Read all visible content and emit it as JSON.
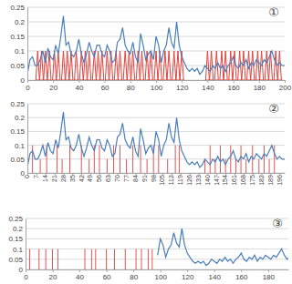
{
  "chart_data": [
    {
      "type": "line",
      "title": "①",
      "xlim": [
        0,
        200
      ],
      "ylim": [
        0,
        0.25
      ],
      "xticks": [
        0,
        20,
        40,
        60,
        80,
        100,
        120,
        140,
        160,
        180,
        200
      ],
      "yticks": [
        0,
        0.05,
        0.1,
        0.15,
        0.2,
        0.25
      ],
      "grid": true,
      "series": [
        {
          "type": "line",
          "color": "#4a7ebb",
          "x": [
            0,
            2,
            4,
            6,
            8,
            10,
            12,
            14,
            16,
            18,
            20,
            22,
            24,
            26,
            28,
            30,
            32,
            34,
            36,
            38,
            40,
            42,
            44,
            46,
            48,
            50,
            52,
            54,
            56,
            58,
            60,
            62,
            64,
            66,
            68,
            70,
            72,
            74,
            76,
            78,
            80,
            82,
            84,
            86,
            88,
            90,
            92,
            94,
            96,
            98,
            100,
            102,
            104,
            106,
            108,
            110,
            112,
            114,
            116,
            118,
            120,
            122,
            124,
            126,
            128,
            130,
            132,
            134,
            136,
            138,
            140,
            142,
            144,
            146,
            148,
            150,
            152,
            154,
            156,
            158,
            160,
            162,
            164,
            166,
            168,
            170,
            172,
            174,
            176,
            178,
            180,
            182,
            184,
            186,
            188,
            190,
            192,
            194,
            196,
            198,
            200
          ],
          "values": [
            0.02,
            0.07,
            0.08,
            0.05,
            0.05,
            0.07,
            0.1,
            0.06,
            0.11,
            0.08,
            0.07,
            0.12,
            0.09,
            0.15,
            0.22,
            0.12,
            0.13,
            0.09,
            0.08,
            0.1,
            0.14,
            0.09,
            0.06,
            0.09,
            0.13,
            0.1,
            0.08,
            0.12,
            0.12,
            0.09,
            0.08,
            0.12,
            0.1,
            0.06,
            0.07,
            0.13,
            0.14,
            0.18,
            0.12,
            0.1,
            0.09,
            0.13,
            0.08,
            0.06,
            0.16,
            0.12,
            0.07,
            0.09,
            0.1,
            0.07,
            0.15,
            0.12,
            0.06,
            0.1,
            0.12,
            0.18,
            0.13,
            0.11,
            0.2,
            0.12,
            0.08,
            0.06,
            0.04,
            0.03,
            0.04,
            0.03,
            0.04,
            0.02,
            0.03,
            0.05,
            0.04,
            0.03,
            0.05,
            0.04,
            0.06,
            0.04,
            0.05,
            0.03,
            0.05,
            0.06,
            0.08,
            0.05,
            0.04,
            0.06,
            0.05,
            0.07,
            0.04,
            0.06,
            0.05,
            0.07,
            0.06,
            0.05,
            0.07,
            0.06,
            0.08,
            0.1,
            0.07,
            0.05,
            0.06,
            0.05,
            0.05
          ]
        },
        {
          "type": "spike",
          "color": "#e0413c",
          "x": [
            8,
            11,
            14,
            17,
            21,
            24,
            28,
            31,
            34,
            38,
            42,
            45,
            48,
            52,
            55,
            58,
            62,
            65,
            69,
            72,
            76,
            79,
            82,
            86,
            89,
            93,
            96,
            100,
            103,
            107,
            110,
            114,
            117,
            120,
            140,
            143,
            147,
            151,
            154,
            158,
            161,
            165,
            168,
            172,
            175,
            179,
            182,
            186,
            189,
            193,
            196
          ],
          "values": [
            0.1,
            0.1,
            0.1,
            0.1,
            0.1,
            0.1,
            0.1,
            0.1,
            0.1,
            0.1,
            0.1,
            0.1,
            0.1,
            0.1,
            0.1,
            0.1,
            0.1,
            0.1,
            0.1,
            0.1,
            0.1,
            0.1,
            0.1,
            0.1,
            0.1,
            0.1,
            0.1,
            0.1,
            0.1,
            0.1,
            0.1,
            0.1,
            0.1,
            0.1,
            0.1,
            0.1,
            0.1,
            0.1,
            0.1,
            0.1,
            0.1,
            0.1,
            0.1,
            0.1,
            0.1,
            0.1,
            0.1,
            0.1,
            0.1,
            0.1,
            0.1
          ]
        }
      ]
    },
    {
      "type": "line",
      "title": "②",
      "xlim": [
        0,
        200
      ],
      "ylim": [
        0,
        0.25
      ],
      "xticks": [
        0,
        7,
        14,
        21,
        28,
        35,
        42,
        49,
        56,
        63,
        70,
        77,
        84,
        91,
        98,
        105,
        112,
        119,
        126,
        133,
        140,
        147,
        154,
        161,
        168,
        175,
        182,
        189,
        196
      ],
      "yticks": [
        0,
        0.05,
        0.1,
        0.15,
        0.2,
        0.25
      ],
      "grid": true,
      "series": [
        {
          "type": "line",
          "color": "#4a7ebb",
          "x": [
            0,
            2,
            4,
            6,
            8,
            10,
            12,
            14,
            16,
            18,
            20,
            22,
            24,
            26,
            28,
            30,
            32,
            34,
            36,
            38,
            40,
            42,
            44,
            46,
            48,
            50,
            52,
            54,
            56,
            58,
            60,
            62,
            64,
            66,
            68,
            70,
            72,
            74,
            76,
            78,
            80,
            82,
            84,
            86,
            88,
            90,
            92,
            94,
            96,
            98,
            100,
            102,
            104,
            106,
            108,
            110,
            112,
            114,
            116,
            118,
            120,
            122,
            124,
            126,
            128,
            130,
            132,
            134,
            136,
            138,
            140,
            142,
            144,
            146,
            148,
            150,
            152,
            154,
            156,
            158,
            160,
            162,
            164,
            166,
            168,
            170,
            172,
            174,
            176,
            178,
            180,
            182,
            184,
            186,
            188,
            190,
            192,
            194,
            196,
            198,
            200
          ],
          "values": [
            0.02,
            0.07,
            0.08,
            0.05,
            0.05,
            0.07,
            0.1,
            0.06,
            0.11,
            0.08,
            0.07,
            0.12,
            0.09,
            0.15,
            0.22,
            0.12,
            0.13,
            0.09,
            0.08,
            0.1,
            0.14,
            0.09,
            0.06,
            0.09,
            0.13,
            0.1,
            0.08,
            0.12,
            0.12,
            0.09,
            0.08,
            0.12,
            0.1,
            0.06,
            0.07,
            0.13,
            0.14,
            0.18,
            0.12,
            0.1,
            0.09,
            0.13,
            0.08,
            0.06,
            0.16,
            0.12,
            0.07,
            0.09,
            0.1,
            0.07,
            0.15,
            0.12,
            0.06,
            0.1,
            0.12,
            0.18,
            0.13,
            0.11,
            0.2,
            0.12,
            0.08,
            0.06,
            0.04,
            0.03,
            0.04,
            0.03,
            0.04,
            0.02,
            0.03,
            0.05,
            0.04,
            0.03,
            0.05,
            0.04,
            0.06,
            0.04,
            0.05,
            0.03,
            0.05,
            0.06,
            0.08,
            0.05,
            0.04,
            0.06,
            0.05,
            0.07,
            0.04,
            0.06,
            0.05,
            0.07,
            0.06,
            0.05,
            0.07,
            0.06,
            0.08,
            0.1,
            0.07,
            0.05,
            0.06,
            0.05,
            0.05
          ]
        },
        {
          "type": "stem",
          "color": "#e05555",
          "x": [
            4,
            10,
            15,
            23,
            27,
            33,
            42,
            48,
            52,
            56,
            62,
            67,
            72,
            77,
            82,
            88,
            93,
            98,
            102,
            109,
            115,
            118,
            138,
            142,
            146,
            150,
            154,
            158,
            162,
            166,
            170,
            175,
            180,
            184,
            188,
            192
          ],
          "values": [
            0.1,
            0.05,
            0.1,
            0.1,
            0.05,
            0.1,
            0.1,
            0.05,
            0.1,
            0.1,
            0.05,
            0.1,
            0.1,
            0.05,
            0.1,
            0.1,
            0.05,
            0.1,
            0.1,
            0.05,
            0.1,
            0.1,
            0.05,
            0.1,
            0.05,
            0.1,
            0.05,
            0.1,
            0.05,
            0.1,
            0.05,
            0.1,
            0.05,
            0.1,
            0.05,
            0.1
          ]
        }
      ]
    },
    {
      "type": "line",
      "title": "③",
      "xlim": [
        0,
        195
      ],
      "ylim": [
        0,
        0.25
      ],
      "xticks": [
        0,
        20,
        40,
        60,
        80,
        100,
        120,
        140,
        160,
        180
      ],
      "yticks": [
        0,
        0.05,
        0.1,
        0.15,
        0.2,
        0.25
      ],
      "grid": true,
      "series": [
        {
          "type": "line",
          "color": "#4a7ebb",
          "x": [
            0,
            2,
            4,
            6,
            8,
            10,
            12,
            14,
            16,
            18,
            20,
            22,
            24,
            26,
            28,
            30,
            32,
            34,
            36,
            38,
            40,
            42,
            44,
            46,
            48,
            50,
            52,
            54,
            56,
            58,
            60,
            62,
            64,
            66,
            68,
            70,
            72,
            74,
            76,
            78,
            80,
            82,
            84,
            86,
            88,
            90,
            92,
            94,
            96,
            98,
            100,
            102,
            104,
            106,
            108,
            110,
            112,
            114,
            116,
            118,
            120,
            122,
            124,
            126,
            128,
            130,
            132,
            134,
            136,
            138,
            140,
            142,
            144,
            146,
            148,
            150,
            152,
            154,
            156,
            158,
            160,
            162,
            164,
            166,
            168,
            170,
            172,
            174,
            176,
            178,
            180,
            182,
            184,
            186,
            188,
            190,
            192,
            194,
            196,
            198,
            200
          ],
          "values": [
            null,
            null,
            null,
            null,
            null,
            null,
            null,
            null,
            null,
            null,
            null,
            null,
            null,
            null,
            null,
            null,
            null,
            null,
            null,
            null,
            null,
            null,
            null,
            null,
            null,
            null,
            null,
            null,
            null,
            null,
            null,
            null,
            null,
            null,
            null,
            null,
            null,
            null,
            null,
            null,
            null,
            null,
            null,
            null,
            null,
            null,
            null,
            null,
            null,
            0.07,
            0.15,
            0.12,
            0.06,
            0.1,
            0.12,
            0.18,
            0.13,
            0.11,
            0.2,
            0.12,
            0.08,
            0.06,
            0.04,
            0.03,
            0.04,
            0.03,
            0.04,
            0.02,
            0.03,
            0.05,
            0.04,
            0.03,
            0.05,
            0.04,
            0.06,
            0.04,
            0.05,
            0.03,
            0.05,
            0.06,
            0.08,
            0.05,
            0.04,
            0.06,
            0.05,
            0.07,
            0.04,
            0.06,
            0.05,
            0.07,
            0.06,
            0.05,
            0.07,
            0.06,
            0.08,
            0.1,
            0.07,
            0.05,
            0.06,
            0.05,
            0.05
          ]
        },
        {
          "type": "stem",
          "color": "#e05555",
          "x": [
            3,
            10,
            15,
            20,
            24,
            44,
            49,
            52,
            60,
            66,
            74,
            82,
            86,
            91,
            94
          ],
          "values": [
            0.1,
            0.1,
            0.1,
            0.1,
            0.1,
            0.1,
            0.1,
            0.1,
            0.1,
            0.1,
            0.1,
            0.1,
            0.1,
            0.1,
            0.1
          ]
        }
      ]
    }
  ]
}
